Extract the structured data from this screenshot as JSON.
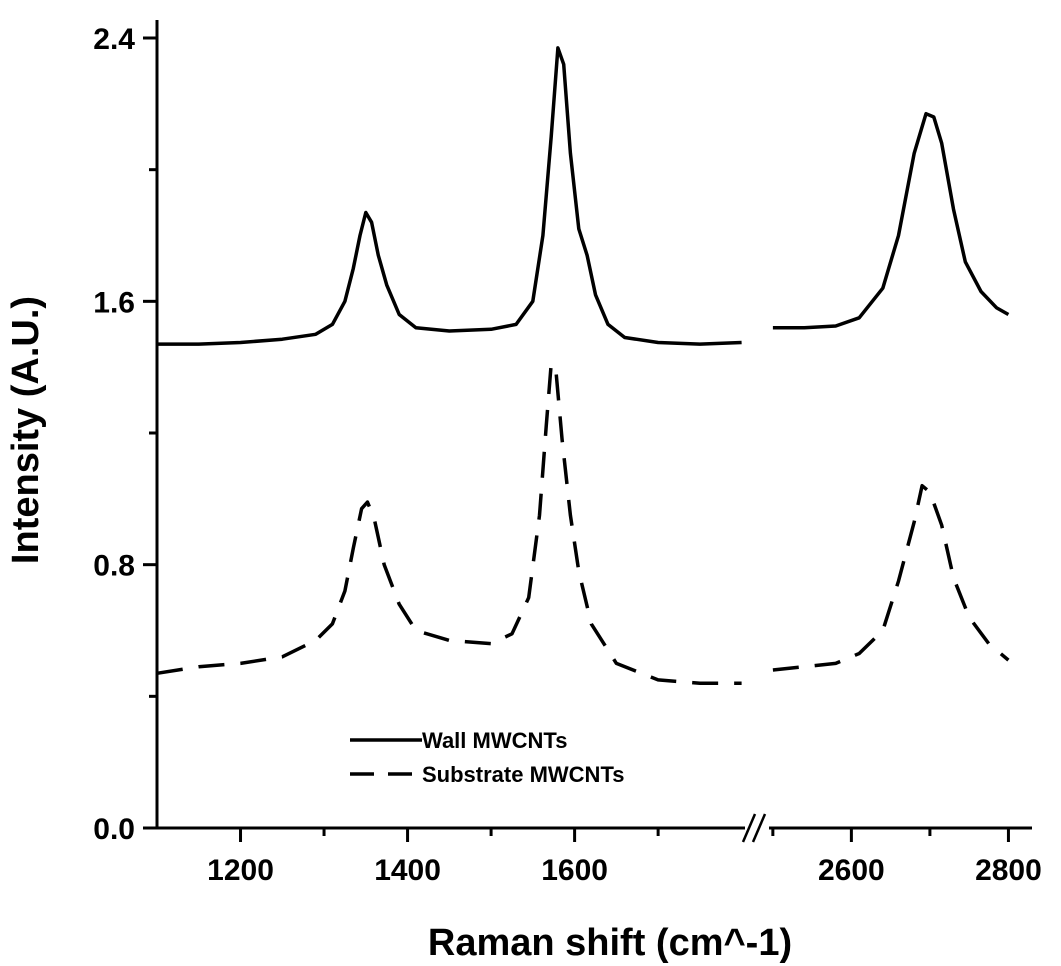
{
  "chart_data": {
    "type": "line",
    "title": "",
    "xlabel": "Raman shift (cm^-1)",
    "ylabel": "Intensity (A.U.)",
    "ylim": [
      0.0,
      2.4
    ],
    "y_ticks": [
      "0.0",
      "0.8",
      "1.6",
      "2.4"
    ],
    "x_segments": [
      {
        "range": [
          1100,
          1810
        ],
        "ticks": [
          "1200",
          "1400",
          "1600"
        ]
      },
      {
        "range": [
          2490,
          2830
        ],
        "ticks": [
          "2600",
          "2800"
        ]
      }
    ],
    "axis_break": "//",
    "grid": false,
    "legend_placement": "bottom-center",
    "series": [
      {
        "name": "Wall MWCNTs",
        "style": "solid",
        "color": "#000000",
        "points": [
          [
            1100,
            1.47
          ],
          [
            1150,
            1.47
          ],
          [
            1200,
            1.475
          ],
          [
            1250,
            1.485
          ],
          [
            1290,
            1.5
          ],
          [
            1310,
            1.53
          ],
          [
            1325,
            1.6
          ],
          [
            1335,
            1.7
          ],
          [
            1343,
            1.8
          ],
          [
            1350,
            1.87
          ],
          [
            1357,
            1.84
          ],
          [
            1365,
            1.74
          ],
          [
            1375,
            1.65
          ],
          [
            1390,
            1.56
          ],
          [
            1410,
            1.52
          ],
          [
            1450,
            1.51
          ],
          [
            1500,
            1.515
          ],
          [
            1530,
            1.53
          ],
          [
            1550,
            1.6
          ],
          [
            1562,
            1.8
          ],
          [
            1572,
            2.1
          ],
          [
            1580,
            2.37
          ],
          [
            1587,
            2.32
          ],
          [
            1595,
            2.05
          ],
          [
            1605,
            1.82
          ],
          [
            1615,
            1.74
          ],
          [
            1625,
            1.62
          ],
          [
            1640,
            1.53
          ],
          [
            1660,
            1.49
          ],
          [
            1700,
            1.475
          ],
          [
            1750,
            1.47
          ],
          [
            1800,
            1.475
          ],
          null,
          [
            2500,
            1.52
          ],
          [
            2540,
            1.52
          ],
          [
            2580,
            1.525
          ],
          [
            2610,
            1.55
          ],
          [
            2640,
            1.64
          ],
          [
            2660,
            1.8
          ],
          [
            2680,
            2.05
          ],
          [
            2695,
            2.17
          ],
          [
            2705,
            2.16
          ],
          [
            2715,
            2.08
          ],
          [
            2730,
            1.88
          ],
          [
            2745,
            1.72
          ],
          [
            2765,
            1.63
          ],
          [
            2785,
            1.58
          ],
          [
            2800,
            1.56
          ]
        ]
      },
      {
        "name": "Substrate MWCNTs",
        "style": "dashed",
        "color": "#000000",
        "points": [
          [
            1100,
            0.47
          ],
          [
            1150,
            0.49
          ],
          [
            1200,
            0.5
          ],
          [
            1250,
            0.52
          ],
          [
            1290,
            0.57
          ],
          [
            1310,
            0.62
          ],
          [
            1325,
            0.72
          ],
          [
            1335,
            0.85
          ],
          [
            1345,
            0.97
          ],
          [
            1352,
            0.99
          ],
          [
            1360,
            0.94
          ],
          [
            1372,
            0.8
          ],
          [
            1390,
            0.68
          ],
          [
            1410,
            0.6
          ],
          [
            1450,
            0.57
          ],
          [
            1500,
            0.56
          ],
          [
            1525,
            0.59
          ],
          [
            1545,
            0.7
          ],
          [
            1558,
            0.95
          ],
          [
            1566,
            1.22
          ],
          [
            1572,
            1.41
          ],
          [
            1578,
            1.38
          ],
          [
            1585,
            1.18
          ],
          [
            1595,
            0.95
          ],
          [
            1605,
            0.78
          ],
          [
            1620,
            0.62
          ],
          [
            1650,
            0.5
          ],
          [
            1700,
            0.45
          ],
          [
            1750,
            0.44
          ],
          [
            1800,
            0.44
          ],
          null,
          [
            2500,
            0.48
          ],
          [
            2540,
            0.49
          ],
          [
            2580,
            0.5
          ],
          [
            2610,
            0.53
          ],
          [
            2640,
            0.6
          ],
          [
            2660,
            0.75
          ],
          [
            2680,
            0.93
          ],
          [
            2690,
            1.04
          ],
          [
            2700,
            1.02
          ],
          [
            2715,
            0.92
          ],
          [
            2730,
            0.76
          ],
          [
            2750,
            0.64
          ],
          [
            2775,
            0.56
          ],
          [
            2800,
            0.51
          ]
        ]
      }
    ]
  }
}
